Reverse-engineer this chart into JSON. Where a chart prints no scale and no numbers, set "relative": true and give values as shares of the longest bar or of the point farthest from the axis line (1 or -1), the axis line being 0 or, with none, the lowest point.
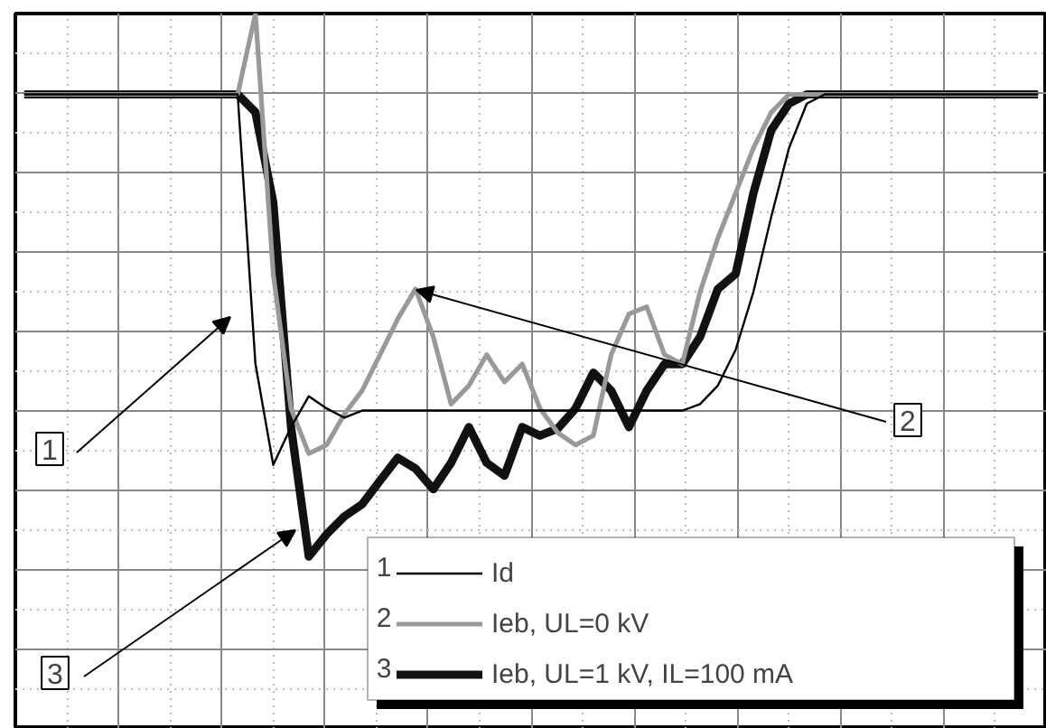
{
  "chart_data": {
    "type": "line",
    "relative": true,
    "grid": true,
    "legend": "bottom right",
    "categories": [
      null,
      null,
      null,
      null,
      null,
      null,
      null,
      null,
      null,
      null,
      null,
      null,
      null,
      null,
      null,
      null,
      null,
      null,
      null,
      null,
      null,
      null,
      null,
      null,
      null,
      null,
      null,
      null,
      null,
      null,
      null,
      null,
      null,
      null,
      null,
      null,
      null,
      null,
      null,
      null,
      null,
      null,
      null,
      null,
      null,
      null,
      null,
      null,
      null,
      null,
      null,
      null,
      null,
      null,
      null,
      null,
      null,
      null
    ],
    "series": [
      {
        "name": "Id",
        "color": "#000000",
        "values": [
          0.887,
          0.887,
          0.887,
          0.887,
          0.887,
          0.887,
          0.887,
          0.887,
          0.887,
          0.887,
          0.887,
          0.887,
          0.887,
          0.51,
          0.369,
          0.422,
          0.465,
          0.448,
          0.435,
          0.445,
          0.445,
          0.445,
          0.445,
          0.445,
          0.445,
          0.445,
          0.445,
          0.445,
          0.445,
          0.445,
          0.445,
          0.445,
          0.445,
          0.445,
          0.445,
          0.445,
          0.445,
          0.445,
          0.454,
          0.48,
          0.53,
          0.611,
          0.716,
          0.812,
          0.874,
          0.887,
          0.887,
          0.887,
          0.887,
          0.887,
          0.887,
          0.887,
          0.887,
          0.887,
          0.887,
          0.887,
          0.887,
          0.887
        ]
      },
      {
        "name": "Ieb, UL=0 kV",
        "color": "#999999",
        "values": [
          0.887,
          0.887,
          0.887,
          0.887,
          0.887,
          0.887,
          0.887,
          0.887,
          0.887,
          0.887,
          0.887,
          0.887,
          0.887,
          1.0,
          0.636,
          0.448,
          0.385,
          0.397,
          0.44,
          0.473,
          0.523,
          0.573,
          0.615,
          0.548,
          0.454,
          0.48,
          0.523,
          0.485,
          0.51,
          0.448,
          0.414,
          0.397,
          0.41,
          0.523,
          0.58,
          0.59,
          0.523,
          0.51,
          0.611,
          0.686,
          0.749,
          0.812,
          0.862,
          0.887,
          0.887,
          0.887,
          0.887,
          0.887,
          0.887,
          0.887,
          0.887,
          0.887,
          0.887,
          0.887,
          0.887,
          0.887,
          0.887,
          0.887
        ]
      },
      {
        "name": "Ieb, UL=1 kV, IL=100 mA",
        "color": "#111111",
        "values": [
          0.887,
          0.887,
          0.887,
          0.887,
          0.887,
          0.887,
          0.887,
          0.887,
          0.887,
          0.887,
          0.887,
          0.887,
          0.887,
          0.862,
          0.736,
          0.422,
          0.241,
          0.272,
          0.297,
          0.314,
          0.347,
          0.379,
          0.364,
          0.335,
          0.372,
          0.422,
          0.372,
          0.354,
          0.422,
          0.41,
          0.42,
          0.448,
          0.498,
          0.473,
          0.422,
          0.473,
          0.51,
          0.51,
          0.548,
          0.615,
          0.636,
          0.749,
          0.837,
          0.874,
          0.887,
          0.887,
          0.887,
          0.887,
          0.887,
          0.887,
          0.887,
          0.887,
          0.887,
          0.887,
          0.887,
          0.887,
          0.887,
          0.887
        ]
      }
    ],
    "annotations": [
      "1",
      "2",
      "3"
    ]
  }
}
